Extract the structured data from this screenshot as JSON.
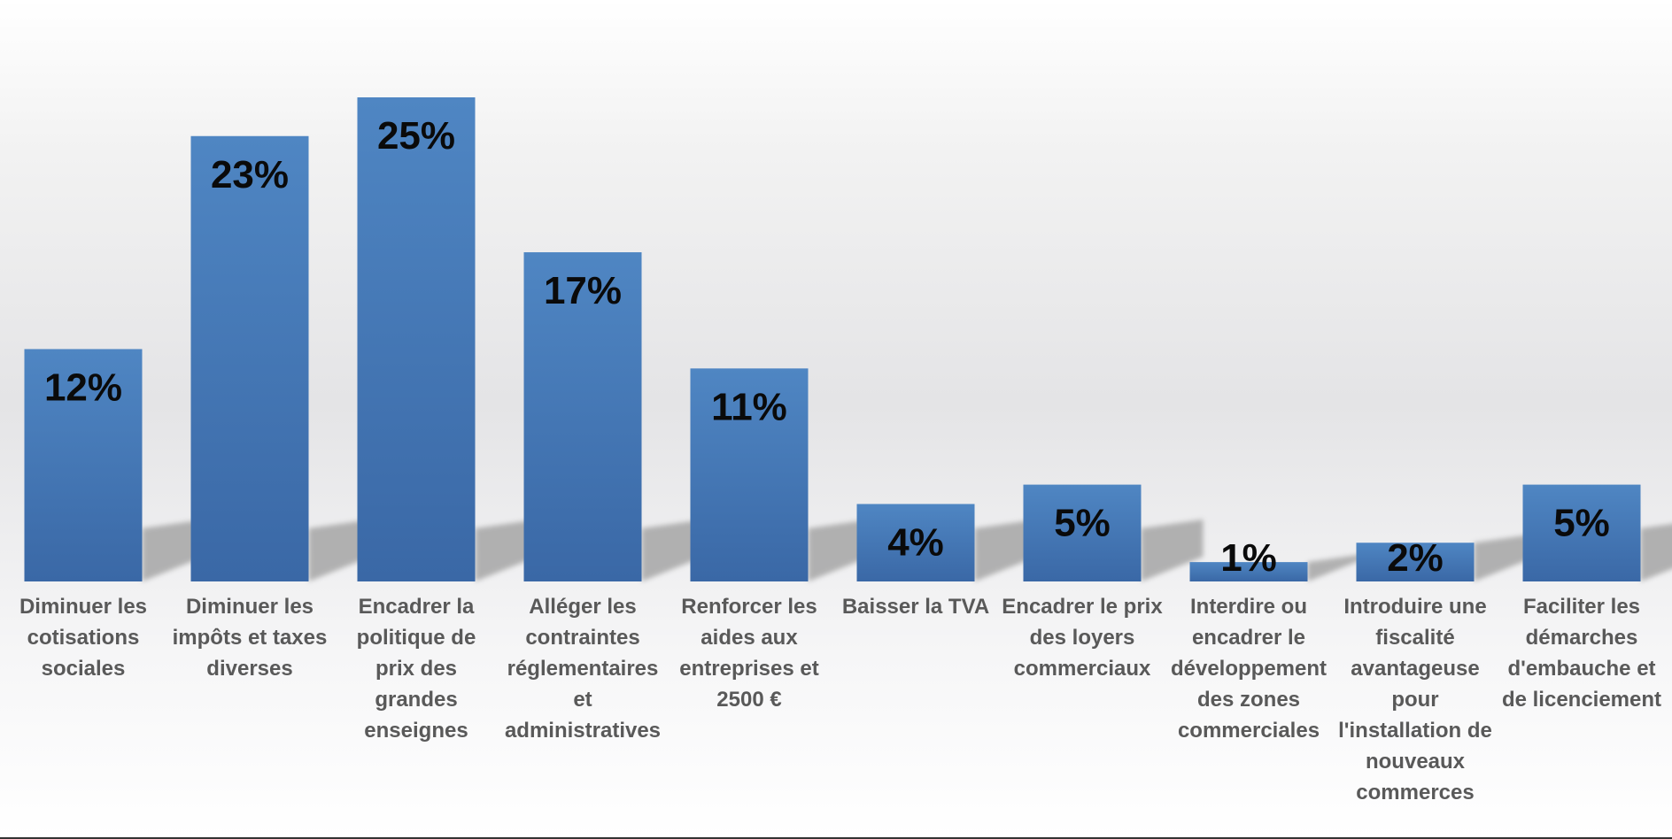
{
  "chart_data": {
    "type": "bar",
    "categories": [
      [
        "Diminuer les",
        "cotisations",
        "sociales"
      ],
      [
        "Diminuer les",
        "impôts et taxes",
        "diverses"
      ],
      [
        "Encadrer la",
        "politique de",
        "prix des",
        "grandes",
        "enseignes"
      ],
      [
        "Alléger les",
        "contraintes",
        "réglementaires",
        "et",
        "administratives"
      ],
      [
        "Renforcer les",
        "aides aux",
        "entreprises et",
        "2500 €"
      ],
      [
        "Baisser la TVA"
      ],
      [
        "Encadrer le prix",
        "des loyers",
        "commerciaux"
      ],
      [
        "Interdire ou",
        "encadrer le",
        "développement",
        "des zones",
        "commerciales"
      ],
      [
        "Introduire une",
        "fiscalité",
        "avantageuse",
        "pour",
        "l'installation de",
        "nouveaux",
        "commerces"
      ],
      [
        "Faciliter les",
        "démarches",
        "d'embauche et",
        "de licenciement"
      ]
    ],
    "values": [
      12,
      23,
      25,
      17,
      11,
      4,
      5,
      1,
      2,
      5
    ],
    "data_labels": [
      "12%",
      "23%",
      "25%",
      "17%",
      "11%",
      "4%",
      "5%",
      "1%",
      "2%",
      "5%"
    ],
    "unit": "%",
    "ylim": [
      0,
      25
    ],
    "grid": false,
    "legend": "none",
    "title": "",
    "xlabel": "",
    "ylabel": ""
  },
  "colors": {
    "bar_top": "#4f86c3",
    "bar_bottom": "#3a68a6",
    "shadow": "#a6a6a6",
    "data_label": "#0a0a0a",
    "category_label": "#595959"
  }
}
